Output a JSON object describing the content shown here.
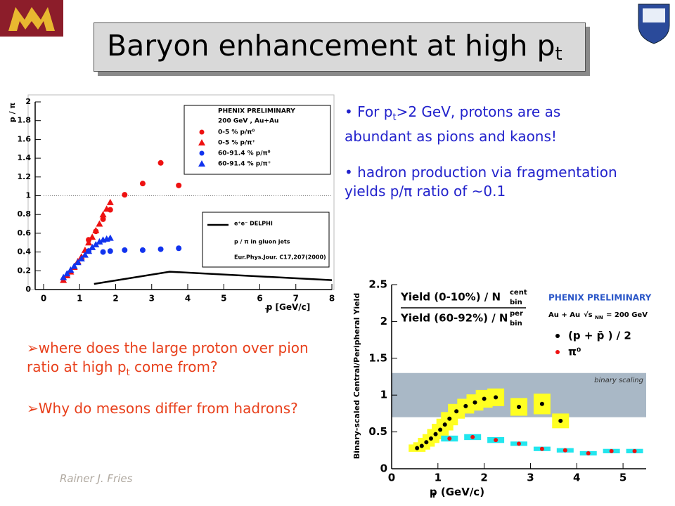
{
  "title": {
    "text": "Baryon enhancement at high p",
    "sub": "t"
  },
  "right_bullets": [
    [
      {
        "text": "• For p"
      },
      {
        "text": "t",
        "sub": true
      },
      {
        "text": ">2 GeV, protons are as abundant as pions and kaons!"
      }
    ],
    [
      {
        "text": "• hadron production via fragmentation yields p/π ratio of ~0.1"
      }
    ]
  ],
  "left_bullets": [
    [
      {
        "text": "➢where does the large proton over pion ratio at high p"
      },
      {
        "text": "t",
        "sub": true
      },
      {
        "text": " come from?"
      }
    ],
    [
      {
        "text": "➢Why do mesons differ from hadrons?"
      }
    ]
  ],
  "footer": "Rainer J. Fries",
  "chart_data": [
    {
      "type": "scatter",
      "xlabel": "p  [GeV/c]",
      "xlabel_sub": "T",
      "ylabel": "p / π",
      "xlim": [
        0,
        8
      ],
      "xticks": [
        0,
        1,
        2,
        3,
        4,
        5,
        6,
        7,
        8
      ],
      "ylim": [
        0,
        2
      ],
      "yticks": [
        0,
        0.2,
        0.4,
        0.6,
        0.8,
        1,
        1.2,
        1.4,
        1.6,
        1.8,
        2
      ],
      "reference_line": 1,
      "legend_header": [
        "PHENIX PRELIMINARY",
        "200 GeV , Au+Au"
      ],
      "series": [
        {
          "name": "0-5 %     p/π⁰",
          "color": "#ee1111",
          "marker": "circle",
          "x": [
            1.25,
            1.45,
            1.65,
            1.85,
            2.25,
            2.75,
            3.25,
            3.75
          ],
          "values": [
            0.53,
            0.62,
            0.75,
            0.85,
            1.01,
            1.13,
            1.35,
            1.11
          ]
        },
        {
          "name": "0-5 %     p/π⁺",
          "color": "#ee1111",
          "marker": "triangle",
          "x": [
            0.55,
            0.65,
            0.75,
            0.85,
            0.95,
            1.05,
            1.15,
            1.25,
            1.35,
            1.45,
            1.55,
            1.65,
            1.75,
            1.85
          ],
          "values": [
            0.1,
            0.15,
            0.19,
            0.24,
            0.3,
            0.35,
            0.42,
            0.5,
            0.56,
            0.63,
            0.7,
            0.8,
            0.86,
            0.93
          ]
        },
        {
          "name": "60-91.4 % p/π⁰",
          "color": "#1133ee",
          "marker": "circle",
          "x": [
            1.25,
            1.65,
            1.85,
            2.25,
            2.75,
            3.25,
            3.75
          ],
          "values": [
            0.41,
            0.4,
            0.41,
            0.42,
            0.42,
            0.43,
            0.44
          ]
        },
        {
          "name": "60-91.4 % p/π⁺",
          "color": "#1133ee",
          "marker": "triangle",
          "x": [
            0.55,
            0.65,
            0.75,
            0.85,
            0.95,
            1.05,
            1.15,
            1.25,
            1.35,
            1.45,
            1.55,
            1.65,
            1.75,
            1.85
          ],
          "values": [
            0.13,
            0.17,
            0.21,
            0.25,
            0.29,
            0.33,
            0.37,
            0.41,
            0.45,
            0.48,
            0.51,
            0.53,
            0.54,
            0.55
          ]
        },
        {
          "name": "e⁺e⁻ DELPHI",
          "color": "#000000",
          "marker": "line",
          "x": [
            1.4,
            3.5,
            8
          ],
          "values": [
            0.06,
            0.19,
            0.1
          ]
        }
      ],
      "notes": [
        "p / π in gluon jets",
        "Eur.Phys.Jour. C17,207(2000)"
      ]
    },
    {
      "type": "scatter",
      "xlabel": "p  (GeV/c)",
      "xlabel_sub": "T",
      "ylabel": "Binary-scaled Central/Peripheral Yield",
      "xlim": [
        0,
        5.5
      ],
      "xticks": [
        0,
        1,
        2,
        3,
        4,
        5
      ],
      "ylim": [
        0,
        2.5
      ],
      "yticks": [
        0,
        0.5,
        1,
        1.5,
        2,
        2.5
      ],
      "band": [
        0.7,
        1.3
      ],
      "band_label": "binary scaling",
      "ratio_labels": [
        {
          "text": "Yield (0-10%) / N",
          "sup": "cent",
          "sub": "bin"
        },
        {
          "text": "Yield (60-92%) / N",
          "sup": "per",
          "sub": "bin"
        }
      ],
      "legend_header": [
        "PHENIX PRELIMINARY",
        "Au + Au",
        "√s",
        "NN",
        "= 200 GeV"
      ],
      "series": [
        {
          "name": "(p + p̄ ) / 2",
          "color": "#000000",
          "marker": "circle",
          "sys_color": "#ffff22",
          "x": [
            0.55,
            0.65,
            0.75,
            0.85,
            0.95,
            1.05,
            1.15,
            1.25,
            1.4,
            1.6,
            1.8,
            2.0,
            2.25,
            2.75,
            3.25,
            3.65
          ],
          "values": [
            0.28,
            0.31,
            0.36,
            0.41,
            0.47,
            0.53,
            0.6,
            0.68,
            0.78,
            0.85,
            0.9,
            0.95,
            0.97,
            0.84,
            0.88,
            0.65
          ],
          "errors": [
            0.05,
            0.05,
            0.06,
            0.06,
            0.07,
            0.08,
            0.08,
            0.09,
            0.1,
            0.1,
            0.11,
            0.12,
            0.12,
            0.12,
            0.14,
            0.1
          ]
        },
        {
          "name": "π⁰",
          "color": "#ee1111",
          "marker": "circle",
          "sys_color": "#22e6ee",
          "x": [
            1.25,
            1.75,
            2.25,
            2.75,
            3.25,
            3.75,
            4.25,
            4.75,
            5.25
          ],
          "values": [
            0.41,
            0.43,
            0.39,
            0.34,
            0.27,
            0.25,
            0.21,
            0.24,
            0.24
          ],
          "errors": [
            0.04,
            0.04,
            0.04,
            0.03,
            0.03,
            0.03,
            0.03,
            0.03,
            0.03
          ]
        }
      ]
    }
  ]
}
